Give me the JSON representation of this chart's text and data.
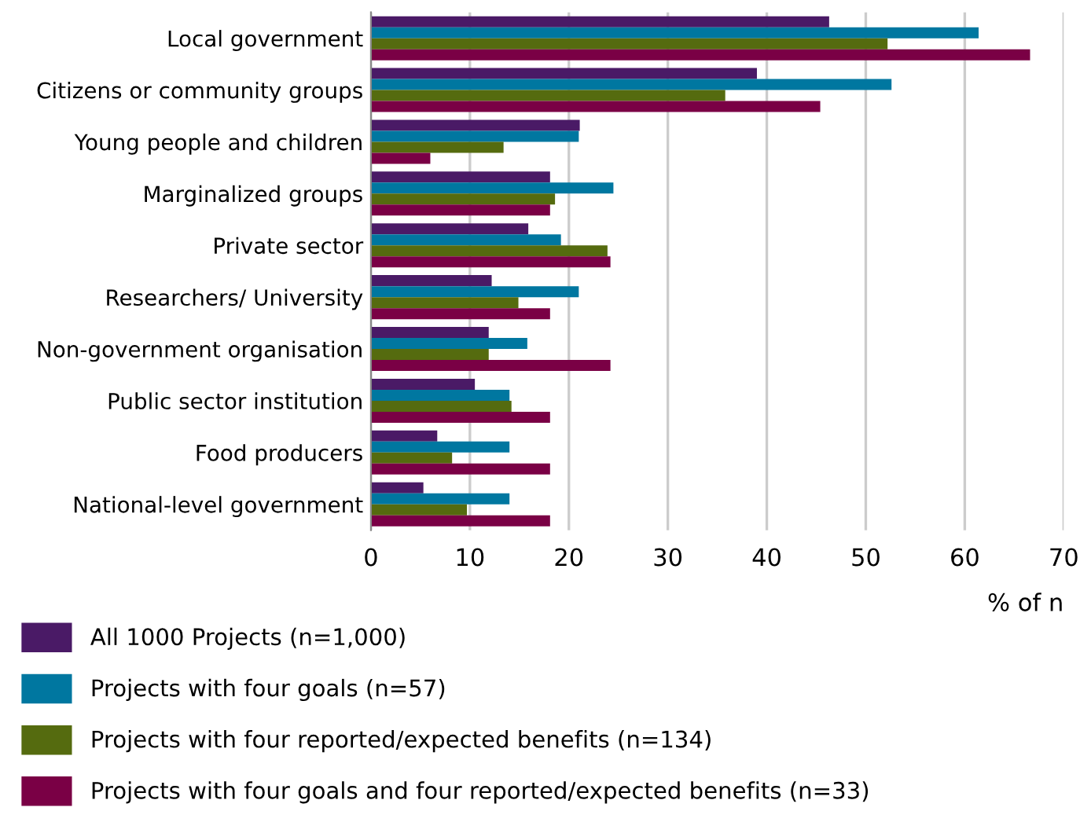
{
  "chart_data": {
    "type": "bar",
    "orientation": "horizontal",
    "xlabel": "% of n",
    "categories": [
      "Local government",
      "Citizens or community groups",
      "Young people and children",
      "Marginalized groups",
      "Private sector",
      "Researchers/ University",
      "Non-government organisation",
      "Public sector institution",
      "Food producers",
      "National-level government"
    ],
    "series": [
      {
        "name": "All 1000 Projects (n=1,000)",
        "color": "#4a1a66",
        "values": [
          46.3,
          39.0,
          21.1,
          18.1,
          15.9,
          12.2,
          11.9,
          10.5,
          6.7,
          5.3
        ]
      },
      {
        "name": "Projects with four goals (n=57)",
        "color": "#0077a0",
        "values": [
          61.4,
          52.6,
          21.0,
          24.5,
          19.2,
          21.0,
          15.8,
          14.0,
          14.0,
          14.0
        ]
      },
      {
        "name": "Projects with four reported/expected benefits (n=134)",
        "color": "#556b0f",
        "values": [
          52.2,
          35.8,
          13.4,
          18.6,
          23.9,
          14.9,
          11.9,
          14.2,
          8.2,
          9.7
        ]
      },
      {
        "name": "Projects with four goals and four reported/expected benefits (n=33)",
        "color": "#7a0045",
        "values": [
          66.6,
          45.4,
          6.0,
          18.1,
          24.2,
          18.1,
          24.2,
          18.1,
          18.1,
          18.1
        ]
      }
    ],
    "xlim": [
      0,
      70
    ],
    "xticks": [
      0,
      10,
      20,
      30,
      40,
      50,
      60,
      70
    ],
    "grid": "x",
    "legend": "bottom left"
  }
}
